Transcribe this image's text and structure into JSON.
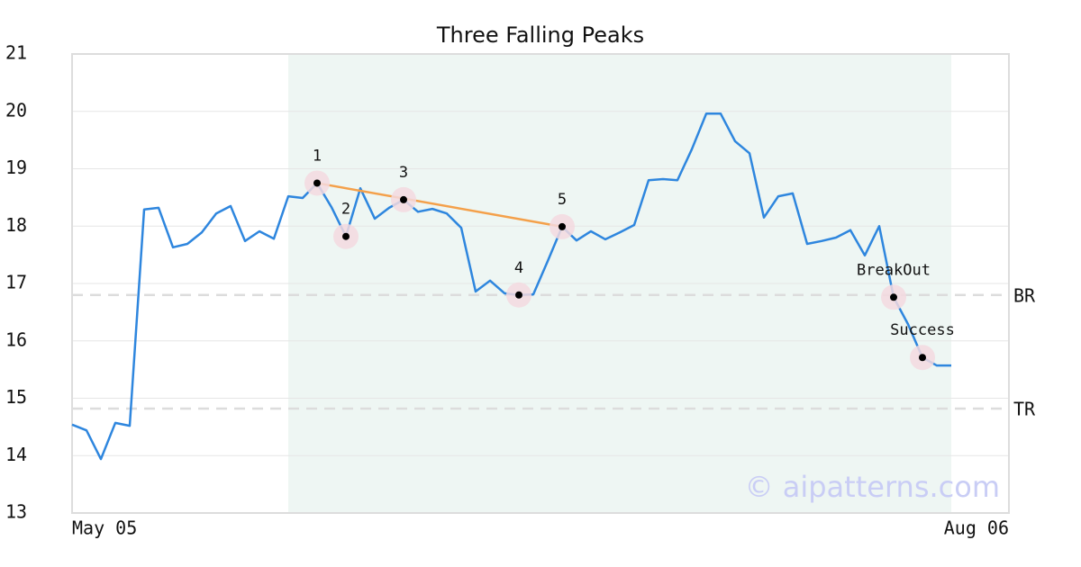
{
  "chart_data": {
    "type": "line",
    "title": "Three Falling Peaks",
    "categories": [
      "May 05",
      null,
      null,
      null,
      null,
      null,
      null,
      null,
      null,
      null,
      null,
      null,
      null,
      null,
      null,
      null,
      null,
      null,
      null,
      null,
      null,
      null,
      null,
      null,
      null,
      null,
      null,
      null,
      null,
      null,
      null,
      null,
      null,
      null,
      null,
      null,
      null,
      null,
      null,
      null,
      null,
      null,
      null,
      null,
      null,
      null,
      null,
      null,
      null,
      null,
      null,
      null,
      null,
      null,
      null,
      null,
      null,
      null,
      null,
      null,
      null,
      "Aug 06"
    ],
    "values": [
      14.54,
      14.44,
      13.94,
      14.57,
      14.52,
      18.29,
      18.32,
      17.63,
      17.69,
      17.89,
      18.22,
      18.35,
      17.74,
      17.91,
      17.78,
      18.52,
      18.49,
      18.75,
      18.33,
      17.82,
      18.66,
      18.13,
      18.32,
      18.46,
      18.25,
      18.3,
      18.22,
      17.97,
      16.86,
      17.05,
      16.83,
      16.8,
      16.81,
      17.39,
      17.99,
      17.75,
      17.91,
      17.77,
      17.89,
      18.02,
      18.8,
      18.82,
      18.8,
      19.34,
      19.96,
      19.96,
      19.48,
      19.27,
      18.15,
      18.52,
      18.57,
      17.69,
      17.74,
      17.8,
      17.93,
      17.49,
      18.0,
      16.76,
      16.29,
      15.71,
      15.57,
      15.57
    ],
    "point_labels": [
      null,
      null,
      null,
      null,
      null,
      null,
      null,
      null,
      null,
      null,
      null,
      null,
      null,
      null,
      null,
      null,
      null,
      "1",
      null,
      "2",
      null,
      null,
      null,
      "3",
      null,
      null,
      null,
      null,
      null,
      null,
      null,
      "4",
      null,
      null,
      "5",
      null,
      null,
      null,
      null,
      null,
      null,
      null,
      null,
      null,
      null,
      null,
      null,
      null,
      null,
      null,
      null,
      null,
      null,
      null,
      null,
      null,
      null,
      "BreakOut",
      null,
      "Success",
      null,
      null
    ],
    "color": "#2e86de",
    "trendline": {
      "from": "1",
      "to": "5",
      "color": "#f4a04a"
    },
    "highlight": {
      "xlim": [
        15,
        61
      ],
      "color": "#eef6f3"
    },
    "levels": [
      {
        "label": "BR",
        "value": 16.8
      },
      {
        "label": "TR",
        "value": 14.82
      }
    ],
    "watermark": "© aipatterns.com",
    "ylim": [
      13,
      21
    ],
    "yticks": [
      13,
      14,
      15,
      16,
      17,
      18,
      19,
      20,
      21
    ],
    "grid": true
  }
}
